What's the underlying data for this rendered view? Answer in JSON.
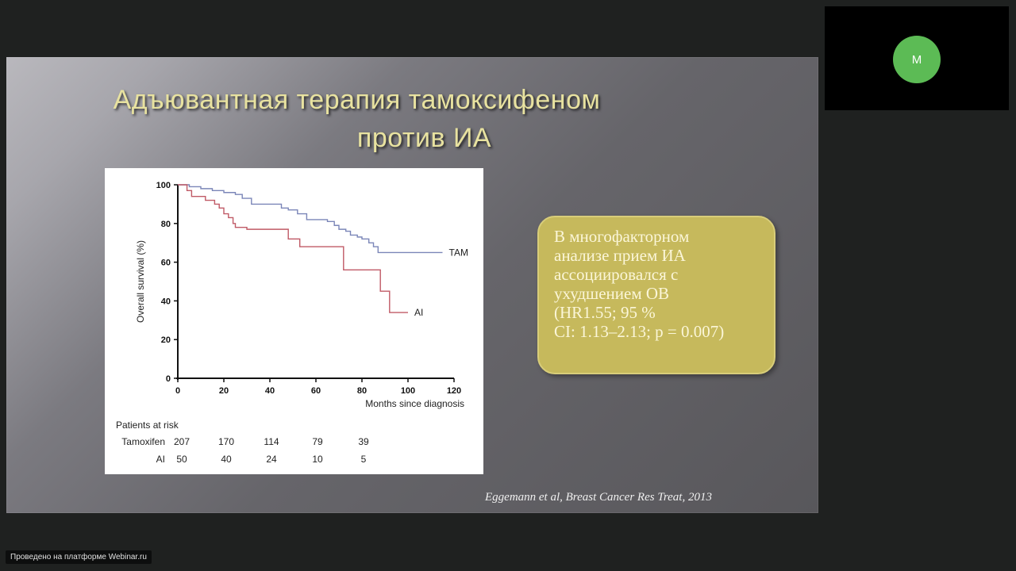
{
  "slide": {
    "title_line1": "Адъювантная терапия тамоксифеном",
    "title_line2": "против ИА",
    "callout_lines": [
      "В многофакторном",
      "анализе прием ИА",
      "ассоциировался с",
      "ухудшением  ОВ",
      "(HR1.55; 95 %",
      "CI: 1.13–2.13; p = 0.007)"
    ],
    "citation": "Eggemann et al, Breast Cancer Res Treat, 2013",
    "colors": {
      "title": "#e8e2a0",
      "callout_bg": "#c6b95c",
      "tam_line": "#7b86b8",
      "ai_line": "#c05a66"
    }
  },
  "chart_data": {
    "type": "line",
    "subtype": "kaplan-meier",
    "title": "",
    "xlabel": "Months since diagnosis",
    "ylabel": "Overall survival (%)",
    "xlim": [
      0,
      120
    ],
    "ylim": [
      0,
      100
    ],
    "x_ticks": [
      "0",
      "20",
      "40",
      "60",
      "80",
      "100",
      "120"
    ],
    "y_ticks": [
      "0",
      "20",
      "40",
      "60",
      "80",
      "100"
    ],
    "grid": false,
    "legend_position": "inline-right",
    "series": [
      {
        "name": "TAM",
        "color": "#7b86b8",
        "x": [
          0,
          5,
          10,
          15,
          20,
          25,
          28,
          32,
          40,
          45,
          48,
          52,
          56,
          65,
          68,
          70,
          73,
          75,
          78,
          80,
          83,
          85,
          87,
          115
        ],
        "y": [
          100,
          99,
          98,
          97,
          96,
          95,
          93,
          90,
          90,
          88,
          87,
          85,
          82,
          81,
          79,
          77,
          76,
          74,
          73,
          72,
          70,
          68,
          65,
          65
        ]
      },
      {
        "name": "AI",
        "color": "#c05a66",
        "x": [
          0,
          4,
          6,
          12,
          16,
          18,
          20,
          22,
          24,
          25,
          30,
          48,
          53,
          72,
          88,
          92,
          100
        ],
        "y": [
          100,
          97,
          94,
          92,
          90,
          88,
          85,
          83,
          80,
          78,
          77,
          72,
          68,
          56,
          45,
          34,
          34
        ]
      }
    ],
    "risk_table": {
      "header": "Patients at risk",
      "columns": [
        "0",
        "20",
        "40",
        "60",
        "80"
      ],
      "rows": [
        {
          "label": "Tamoxifen",
          "values": [
            "207",
            "170",
            "114",
            "79",
            "39"
          ]
        },
        {
          "label": "AI",
          "values": [
            "50",
            "40",
            "24",
            "10",
            "5"
          ]
        }
      ]
    }
  },
  "video_tile": {
    "avatar_initial": "M",
    "avatar_color": "#5cbb55"
  },
  "footer": {
    "platform_badge": "Проведено на платформе Webinar.ru"
  }
}
